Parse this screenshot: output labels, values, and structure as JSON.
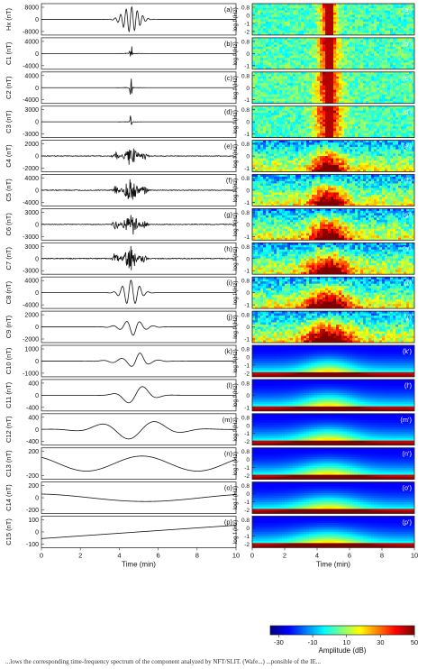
{
  "chart_data": [
    {
      "type": "line",
      "panel": "left",
      "xlabel": "Time (min)",
      "xlim": [
        0,
        10
      ],
      "xticks": [
        0,
        2,
        4,
        6,
        8,
        10
      ],
      "rows": [
        {
          "letter": "(a)",
          "ylabel": "Hx (nT)",
          "yticks": [
            "8000",
            "0",
            "-8000"
          ],
          "amp": 1.0,
          "shape": "chirp"
        },
        {
          "letter": "(b)",
          "ylabel": "C1 (nT)",
          "yticks": [
            "4000",
            "0",
            "-4000"
          ],
          "amp": 0.9,
          "shape": "spike"
        },
        {
          "letter": "(c)",
          "ylabel": "C2 (nT)",
          "yticks": [
            "4000",
            "0",
            "-4000"
          ],
          "amp": 0.9,
          "shape": "spike"
        },
        {
          "letter": "(d)",
          "ylabel": "C3 (nT)",
          "yticks": [
            "3000",
            "0",
            "-3000"
          ],
          "amp": 0.6,
          "shape": "spike"
        },
        {
          "letter": "(e)",
          "ylabel": "C4 (nT)",
          "yticks": [
            "2000",
            "0",
            "-2000"
          ],
          "amp": 0.7,
          "shape": "burst"
        },
        {
          "letter": "(f)",
          "ylabel": "C5 (nT)",
          "yticks": [
            "4000",
            "0",
            "-4000"
          ],
          "amp": 0.8,
          "shape": "burst"
        },
        {
          "letter": "(g)",
          "ylabel": "C6 (nT)",
          "yticks": [
            "3000",
            "0",
            "-3000"
          ],
          "amp": 0.8,
          "shape": "burst"
        },
        {
          "letter": "(h)",
          "ylabel": "C7 (nT)",
          "yticks": [
            "3000",
            "0",
            "-3000"
          ],
          "amp": 0.9,
          "shape": "burst"
        },
        {
          "letter": "(i)",
          "ylabel": "C8 (nT)",
          "yticks": [
            "4000",
            "0",
            "-4000"
          ],
          "amp": 0.9,
          "shape": "wave8"
        },
        {
          "letter": "(j)",
          "ylabel": "C9 (nT)",
          "yticks": [
            "2000",
            "0",
            "-2000"
          ],
          "amp": 0.6,
          "shape": "wave9"
        },
        {
          "letter": "(k)",
          "ylabel": "C10 (nT)",
          "yticks": [
            "1000",
            "0",
            "-1000"
          ],
          "amp": 0.6,
          "shape": "wave10"
        },
        {
          "letter": "(l)",
          "ylabel": "C11 (nT)",
          "yticks": [
            "400",
            "0",
            "-400"
          ],
          "amp": 0.7,
          "shape": "wave11"
        },
        {
          "letter": "(m)",
          "ylabel": "C12 (nT)",
          "yticks": [
            "400",
            "0",
            "-400"
          ],
          "amp": 0.7,
          "shape": "wave12"
        },
        {
          "letter": "(n)",
          "ylabel": "C13 (nT)",
          "yticks": [
            "200",
            "-200"
          ],
          "amp": 0.6,
          "shape": "wave13"
        },
        {
          "letter": "(o)",
          "ylabel": "C14 (nT)",
          "yticks": [
            "200",
            "0",
            "-200"
          ],
          "amp": 0.3,
          "shape": "wave14"
        },
        {
          "letter": "(p)",
          "ylabel": "C15 (nT)",
          "yticks": [
            "100",
            "0",
            "-100"
          ],
          "amp": 0.6,
          "shape": "trend"
        }
      ]
    },
    {
      "type": "heatmap",
      "panel": "right",
      "xlabel": "Time (min)",
      "xlim": [
        0,
        10
      ],
      "xticks": [
        0,
        2,
        4,
        6,
        8,
        10
      ],
      "ylabel": "log f (Hz)",
      "rows": [
        {
          "letter": "(a')",
          "yticks": [
            "0.8",
            "0",
            "-1",
            "-2"
          ]
        },
        {
          "letter": "(b')",
          "yticks": [
            "0.8",
            "0",
            "-1"
          ]
        },
        {
          "letter": "(c')",
          "yticks": [
            "0.8",
            "0",
            "-1"
          ]
        },
        {
          "letter": "(d')",
          "yticks": [
            "0.8",
            "0",
            "-1"
          ]
        },
        {
          "letter": "(e')",
          "yticks": [
            "0.8",
            "0",
            "-1"
          ]
        },
        {
          "letter": "(f')",
          "yticks": [
            "0.8",
            "0",
            "-1"
          ]
        },
        {
          "letter": "(g')",
          "yticks": [
            "0.8",
            "0",
            "-1"
          ]
        },
        {
          "letter": "(h')",
          "yticks": [
            "0.8",
            "0",
            "-1"
          ]
        },
        {
          "letter": "(i')",
          "yticks": [
            "0.8",
            "0",
            "-1"
          ]
        },
        {
          "letter": "(j')",
          "yticks": [
            "0.8",
            "0",
            "-1"
          ]
        },
        {
          "letter": "(k')",
          "yticks": [
            "0.8",
            "0",
            "-1",
            "-2"
          ]
        },
        {
          "letter": "(l')",
          "yticks": [
            "0.8",
            "0",
            "-1"
          ]
        },
        {
          "letter": "(m')",
          "yticks": [
            "0.8",
            "0",
            "-1",
            "-2"
          ]
        },
        {
          "letter": "(n')",
          "yticks": [
            "0.8",
            "0",
            "-1",
            "-2"
          ]
        },
        {
          "letter": "(o')",
          "yticks": [
            "0.8",
            "0",
            "-1",
            "-2"
          ]
        },
        {
          "letter": "(p')",
          "yticks": [
            "0.8",
            "0",
            "-1",
            "-2"
          ]
        }
      ],
      "colorbar": {
        "label": "Amplitude (dB)",
        "ticks": [
          "-30",
          "-10",
          "10",
          "30",
          "50"
        ],
        "range": [
          -35,
          50
        ],
        "colormap": "jet"
      }
    }
  ],
  "caption": "...lows the corresponding time-frequency spectrum of the component analyzed by NFT/SLIT. (Wafe...) ...ponsible of the IE..."
}
